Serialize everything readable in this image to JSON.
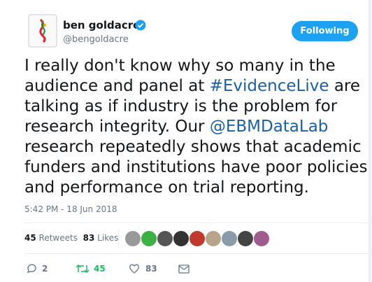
{
  "user": {
    "name": "ben goldacre",
    "handle": "@bengoldacre"
  },
  "follow_button": "Following",
  "tweet": {
    "lines": [
      [
        "I really don't know why so many in the"
      ],
      [
        "audience and panel at ",
        {
          "text": "#EvidenceLive",
          "link": true
        },
        " are"
      ],
      [
        "talking as if industry is the problem for"
      ],
      [
        "research integrity. Our ",
        {
          "text": "@EBMDataLab",
          "link": true
        }
      ],
      [
        "research repeatedly shows that academic"
      ],
      [
        "funders and institutions have poor policies"
      ],
      [
        "and performance on trial reporting."
      ]
    ]
  },
  "timestamp": "5:42 PM - 18 Jun 2018",
  "stats": {
    "retweets": {
      "count": "45",
      "label": "Retweets"
    },
    "likes": {
      "count": "83",
      "label": "Likes"
    }
  },
  "actions": {
    "replies": "2",
    "retweets": "45",
    "likes": "83"
  }
}
